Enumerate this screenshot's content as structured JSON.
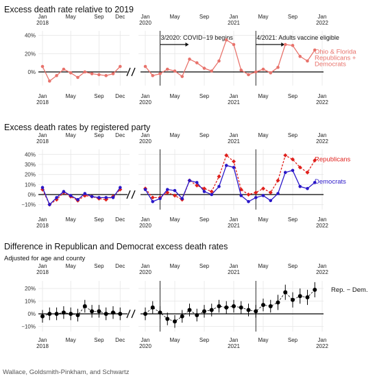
{
  "chart_data": [
    {
      "type": "line",
      "title": "Excess death rate relative to 2019",
      "subtitle": "",
      "xlabel": "",
      "ylabel": "",
      "y_ticks": [
        "0%",
        "20%",
        "40%"
      ],
      "ylim": [
        -15,
        45
      ],
      "x_top_ticks_a": [
        "Jan\n2018",
        "May",
        "Sep",
        "Dec"
      ],
      "x_top_ticks_b": [
        "Jan\n2020",
        "May",
        "Sep",
        "Jan\n2021",
        "May",
        "Sep",
        "Jan\n2022"
      ],
      "x_bottom_ticks_a": [
        "Jan\n2018",
        "May",
        "Sep",
        "Dec"
      ],
      "x_bottom_ticks_b": [
        "Jan\n2020",
        "May",
        "Sep",
        "Jan\n2021",
        "May",
        "Sep",
        "Jan\n2022"
      ],
      "annotations": [
        "3/2020: COVID−19 begins",
        "4/2021: Adults vaccine eligible"
      ],
      "series": [
        {
          "name": "Ohio & Florida Republicans + Democrats",
          "color": "#e8736c",
          "x_a": [
            "2018-01",
            "2018-02",
            "2018-03",
            "2018-04",
            "2018-05",
            "2018-06",
            "2018-07",
            "2018-08",
            "2018-09",
            "2018-10",
            "2018-11",
            "2018-12"
          ],
          "values_a": [
            6,
            -10,
            -4,
            3,
            -1,
            -6,
            0,
            -2,
            -3,
            -4,
            -2,
            6
          ],
          "x_b": [
            "2020-01",
            "2020-02",
            "2020-03",
            "2020-04",
            "2020-05",
            "2020-06",
            "2020-07",
            "2020-08",
            "2020-09",
            "2020-10",
            "2020-11",
            "2020-12",
            "2021-01",
            "2021-02",
            "2021-03",
            "2021-04",
            "2021-05",
            "2021-06",
            "2021-07",
            "2021-08",
            "2021-09",
            "2021-10",
            "2021-11",
            "2021-12"
          ],
          "values_b": [
            6,
            -4,
            -2,
            3,
            1,
            -5,
            14,
            10,
            4,
            1,
            12,
            35,
            30,
            2,
            -3,
            0,
            3,
            -1,
            5,
            30,
            29,
            17,
            12,
            24
          ]
        }
      ],
      "legend_label": "Ohio & Florida\nRepublicans +\nDemocrats"
    },
    {
      "type": "line",
      "title": "Excess death rates by registered party",
      "subtitle": "",
      "xlabel": "",
      "ylabel": "",
      "y_ticks": [
        "−10%",
        "0%",
        "10%",
        "20%",
        "30%",
        "40%"
      ],
      "ylim": [
        -15,
        45
      ],
      "x_top_ticks_a": [
        "Jan\n2018",
        "May",
        "Sep",
        "Dec"
      ],
      "x_top_ticks_b": [
        "Jan\n2020",
        "May",
        "Sep",
        "Jan\n2021",
        "May",
        "Sep",
        "Jan\n2022"
      ],
      "x_bottom_ticks_a": [
        "Jan\n2018",
        "May",
        "Sep",
        "Dec"
      ],
      "x_bottom_ticks_b": [
        "Jan\n2020",
        "May",
        "Sep",
        "Jan\n2021",
        "May",
        "Sep",
        "Jan\n2022"
      ],
      "series": [
        {
          "name": "Republicans",
          "color": "#e0201c",
          "dashed": true,
          "x_a": [
            "2018-01",
            "2018-02",
            "2018-03",
            "2018-04",
            "2018-05",
            "2018-06",
            "2018-07",
            "2018-08",
            "2018-09",
            "2018-10",
            "2018-11",
            "2018-12"
          ],
          "values_a": [
            5,
            -10,
            -5,
            2,
            -2,
            -6,
            -1,
            -2,
            -4,
            -5,
            -2,
            5
          ],
          "x_b": [
            "2020-01",
            "2020-02",
            "2020-03",
            "2020-04",
            "2020-05",
            "2020-06",
            "2020-07",
            "2020-08",
            "2020-09",
            "2020-10",
            "2020-11",
            "2020-12",
            "2021-01",
            "2021-02",
            "2021-03",
            "2021-04",
            "2021-05",
            "2021-06",
            "2021-07",
            "2021-08",
            "2021-09",
            "2021-10",
            "2021-11",
            "2021-12"
          ],
          "values_b": [
            6,
            -3,
            -3,
            2,
            -1,
            -5,
            14,
            9,
            6,
            3,
            18,
            39,
            33,
            5,
            0,
            2,
            6,
            2,
            14,
            39,
            35,
            27,
            22,
            34
          ]
        },
        {
          "name": "Democrats",
          "color": "#2a17c8",
          "dashed": false,
          "x_a": [
            "2018-01",
            "2018-02",
            "2018-03",
            "2018-04",
            "2018-05",
            "2018-06",
            "2018-07",
            "2018-08",
            "2018-09",
            "2018-10",
            "2018-11",
            "2018-12"
          ],
          "values_a": [
            7,
            -10,
            -3,
            3,
            -1,
            -5,
            1,
            -2,
            -3,
            -3,
            -3,
            7
          ],
          "x_b": [
            "2020-01",
            "2020-02",
            "2020-03",
            "2020-04",
            "2020-05",
            "2020-06",
            "2020-07",
            "2020-08",
            "2020-09",
            "2020-10",
            "2020-11",
            "2020-12",
            "2021-01",
            "2021-02",
            "2021-03",
            "2021-04",
            "2021-05",
            "2021-06",
            "2021-07",
            "2021-08",
            "2021-09",
            "2021-10",
            "2021-11",
            "2021-12"
          ],
          "values_b": [
            5,
            -7,
            -4,
            5,
            4,
            -4,
            14,
            12,
            3,
            0,
            8,
            29,
            27,
            -1,
            -7,
            -3,
            -1,
            -6,
            1,
            22,
            24,
            8,
            6,
            12
          ]
        }
      ],
      "legend_labels": [
        "Republicans",
        "Democrats"
      ]
    },
    {
      "type": "scatter",
      "title": "Difference in Republican and Democrat excess death rates",
      "subtitle": "Adjusted for age and county",
      "xlabel": "",
      "ylabel": "",
      "y_ticks": [
        "−10%",
        "0%",
        "10%",
        "20%"
      ],
      "ylim": [
        -14,
        26
      ],
      "x_top_ticks_a": [
        "Jan\n2018",
        "May",
        "Sep",
        "Dec"
      ],
      "x_top_ticks_b": [
        "Jan\n2020",
        "May",
        "Sep",
        "Jan\n2021",
        "May",
        "Sep",
        "Jan\n2022"
      ],
      "x_bottom_ticks_a": [
        "Jan\n2018",
        "May",
        "Sep",
        "Dec"
      ],
      "x_bottom_ticks_b": [
        "Jan\n2020",
        "May",
        "Sep",
        "Jan\n2021",
        "May",
        "Sep",
        "Jan\n2022"
      ],
      "series": [
        {
          "name": "Rep. − Dem.",
          "color": "#000000",
          "x_a": [
            "2018-01",
            "2018-02",
            "2018-03",
            "2018-04",
            "2018-05",
            "2018-06",
            "2018-07",
            "2018-08",
            "2018-09",
            "2018-10",
            "2018-11",
            "2018-12"
          ],
          "values_a": [
            -2,
            0,
            0,
            1,
            0,
            -1,
            6,
            2,
            2,
            0,
            1,
            0
          ],
          "err_a": [
            5,
            5,
            5,
            5,
            5,
            5,
            5,
            5,
            5,
            5,
            5,
            5
          ],
          "x_b": [
            "2020-01",
            "2020-02",
            "2020-03",
            "2020-04",
            "2020-05",
            "2020-06",
            "2020-07",
            "2020-08",
            "2020-09",
            "2020-10",
            "2020-11",
            "2020-12",
            "2021-01",
            "2021-02",
            "2021-03",
            "2021-04",
            "2021-05",
            "2021-06",
            "2021-07",
            "2021-08",
            "2021-09",
            "2021-10",
            "2021-11",
            "2021-12"
          ],
          "values_b": [
            0,
            5,
            1,
            -4,
            -6,
            -2,
            3,
            -1,
            2,
            3,
            6,
            5,
            6,
            5,
            3,
            2,
            7,
            6,
            9,
            17,
            11,
            14,
            13,
            19
          ],
          "err_b": [
            5,
            5,
            5,
            5,
            5,
            5,
            5,
            5,
            5,
            5,
            5,
            5,
            5,
            5,
            5,
            5,
            5,
            5,
            6,
            6,
            6,
            6,
            6,
            6
          ]
        }
      ],
      "legend_label": "Rep. − Dem."
    }
  ],
  "credit": "Wallace, Goldsmith-Pinkham, and Schwartz"
}
